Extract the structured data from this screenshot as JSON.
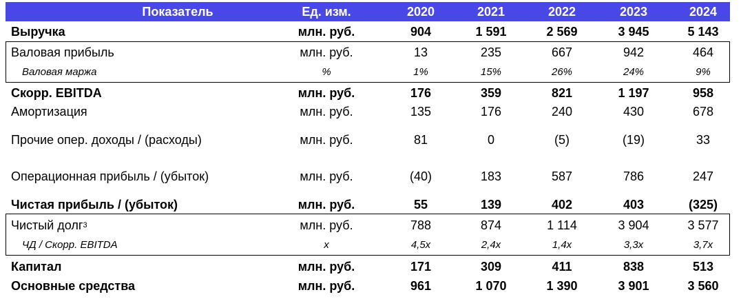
{
  "header": {
    "indicator": "Показатель",
    "unit": "Ед. изм.",
    "years": [
      "2020",
      "2021",
      "2022",
      "2023",
      "2024"
    ]
  },
  "rows": [
    {
      "label": "Выручка",
      "unit": "млн. руб.",
      "values": [
        "904",
        "1 591",
        "2 569",
        "3 945",
        "5 143"
      ]
    },
    {
      "label": "Валовая прибыль",
      "unit": "млн. руб.",
      "values": [
        "13",
        "235",
        "667",
        "942",
        "464"
      ]
    },
    {
      "label": "Валовая маржа",
      "unit": "%",
      "values": [
        "1%",
        "15%",
        "26%",
        "24%",
        "9%"
      ]
    },
    {
      "label": "Скорр. EBITDA",
      "unit": "млн. руб.",
      "values": [
        "176",
        "359",
        "821",
        "1 197",
        "958"
      ]
    },
    {
      "label": "Амортизация",
      "unit": "млн. руб.",
      "values": [
        "135",
        "176",
        "240",
        "430",
        "678"
      ]
    },
    {
      "label": "Прочие опер. доходы / (расходы)",
      "unit": "млн. руб.",
      "values": [
        "81",
        "0",
        "(5)",
        "(19)",
        "33"
      ]
    },
    {
      "label": "Операционная прибыль / (убыток)",
      "unit": "млн. руб.",
      "values": [
        "(40)",
        "183",
        "587",
        "786",
        "247"
      ]
    },
    {
      "label": "Чистая прибыль / (убыток)",
      "unit": "млн. руб.",
      "values": [
        "55",
        "139",
        "402",
        "403",
        "(325)"
      ]
    },
    {
      "label": "Чистый долг",
      "label_sup": "3",
      "unit": "млн. руб.",
      "values": [
        "788",
        "874",
        "1 114",
        "3 904",
        "3 577"
      ]
    },
    {
      "label": "ЧД / Скорр. EBITDA",
      "unit": "x",
      "values": [
        "4,5x",
        "2,4x",
        "1,4x",
        "3,3x",
        "3,7x"
      ]
    },
    {
      "label": "Капитал",
      "unit": "млн. руб.",
      "values": [
        "171",
        "309",
        "411",
        "838",
        "513"
      ]
    },
    {
      "label": "Основные средства",
      "unit": "млн. руб.",
      "values": [
        "961",
        "1 070",
        "1 390",
        "3 901",
        "3 560"
      ]
    }
  ]
}
